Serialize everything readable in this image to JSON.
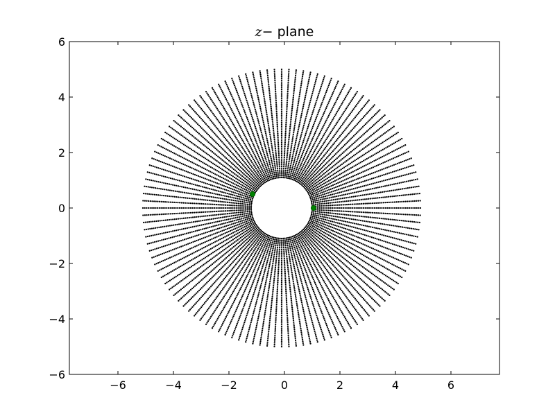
{
  "chart_data": {
    "type": "scatter",
    "title": {
      "math": "z",
      "rest": "− plane"
    },
    "xlim": [
      -7.75,
      7.75
    ],
    "ylim": [
      -6,
      6
    ],
    "xticks": [
      -6,
      -4,
      -2,
      0,
      2,
      4,
      6
    ],
    "yticks": [
      -6,
      -4,
      -2,
      0,
      2,
      4,
      6
    ],
    "xtick_labels": [
      "−6",
      "−4",
      "−2",
      "0",
      "2",
      "4",
      "6"
    ],
    "ytick_labels": [
      "−6",
      "−4",
      "−2",
      "0",
      "2",
      "4",
      "6"
    ],
    "grid": false,
    "mesh": {
      "description": "radial rays of black dots forming an annulus",
      "center": [
        -0.1,
        0.0
      ],
      "inner_radius": 1.1,
      "outer_radius": 5.0,
      "ray_count": 120,
      "points_per_ray": 60,
      "color": "#000000"
    },
    "highlight_points": [
      {
        "x": -1.15,
        "y": 0.5,
        "color": "#008000"
      },
      {
        "x": 1.05,
        "y": 0.0,
        "color": "#008000"
      }
    ]
  }
}
